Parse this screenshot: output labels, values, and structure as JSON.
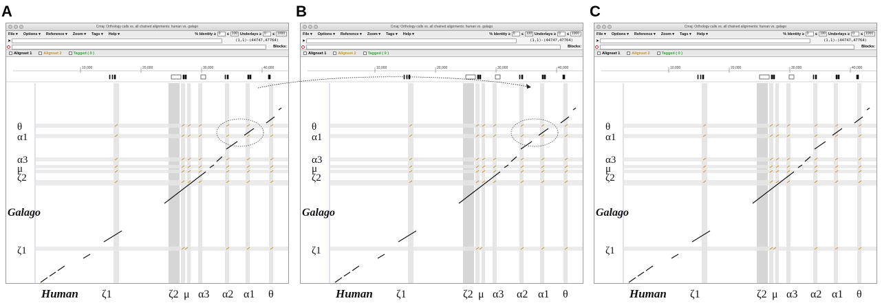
{
  "panels": [
    {
      "label": "A",
      "title": "Cmaj: Orthology calls vs. all chained alignments: human vs. galago"
    },
    {
      "label": "B",
      "title": "Cmaj: Orthology calls vs. all chained alignments: human vs. galago"
    },
    {
      "label": "C",
      "title": "Cmaj: Orthology calls vs. all chained alignments: human vs. galago"
    }
  ],
  "menu": {
    "file": "File ▾",
    "options": "Options ▾",
    "reference": "Reference ▾",
    "zoom": "Zoom ▾",
    "tags": "Tags ▾",
    "help": "Help ▾"
  },
  "controls": {
    "identity_label": "% Identity ≥",
    "identity_min": "0",
    "le": "≤",
    "identity_max": "100",
    "underlays_label": "Underlays ≥",
    "underlays_min": "0",
    "underlays_max": "1000",
    "coords": "(1,1)-(44747,47764)",
    "blocks": "Blocks:"
  },
  "alignsets": {
    "a1": "Alignset 1",
    "a2": "Alignset 2",
    "tagged": "Tagged ( 0 )"
  },
  "ruler_ticks": [
    "10,000",
    "20,000",
    "30,000",
    "40,000"
  ],
  "y_labels": [
    "θ",
    "α1",
    "α3",
    "μ",
    "ζ2",
    "ζ1"
  ],
  "y_axis_title": "Galago",
  "x_labels": [
    "ζ1",
    "ζ2",
    "μ",
    "α3",
    "α2",
    "α1",
    "θ"
  ],
  "x_axis_title": "Human",
  "colors": {
    "alignset1": "#111111",
    "alignset2": "#c8902a",
    "tagged": "#33aa33",
    "band": "#e3e3e3",
    "shade": "#d9d9d9"
  }
}
